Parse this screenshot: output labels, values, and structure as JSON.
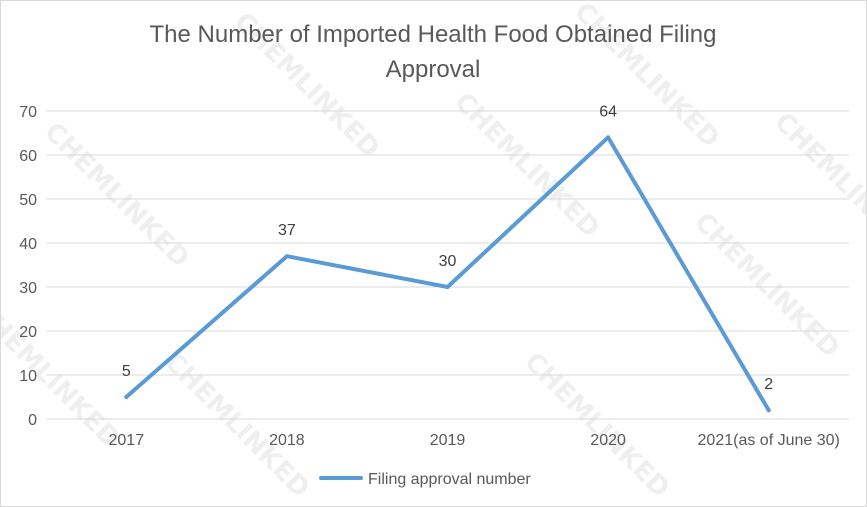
{
  "chart_data": {
    "type": "line",
    "title_lines": [
      "The Number of Imported Health Food Obtained Filing",
      "Approval"
    ],
    "categories": [
      "2017",
      "2018",
      "2019",
      "2020",
      "2021(as of June 30)"
    ],
    "series": [
      {
        "name": "Filing approval number",
        "values": [
          5,
          37,
          30,
          64,
          2
        ],
        "color": "#5b9bd5"
      }
    ],
    "data_labels": [
      "5",
      "37",
      "30",
      "64",
      "2"
    ],
    "ylim": [
      0,
      70
    ],
    "yticks": [
      "0",
      "10",
      "20",
      "30",
      "40",
      "50",
      "60",
      "70"
    ],
    "grid": true,
    "legend_position": "bottom"
  },
  "watermark": "CHEMLINKED"
}
